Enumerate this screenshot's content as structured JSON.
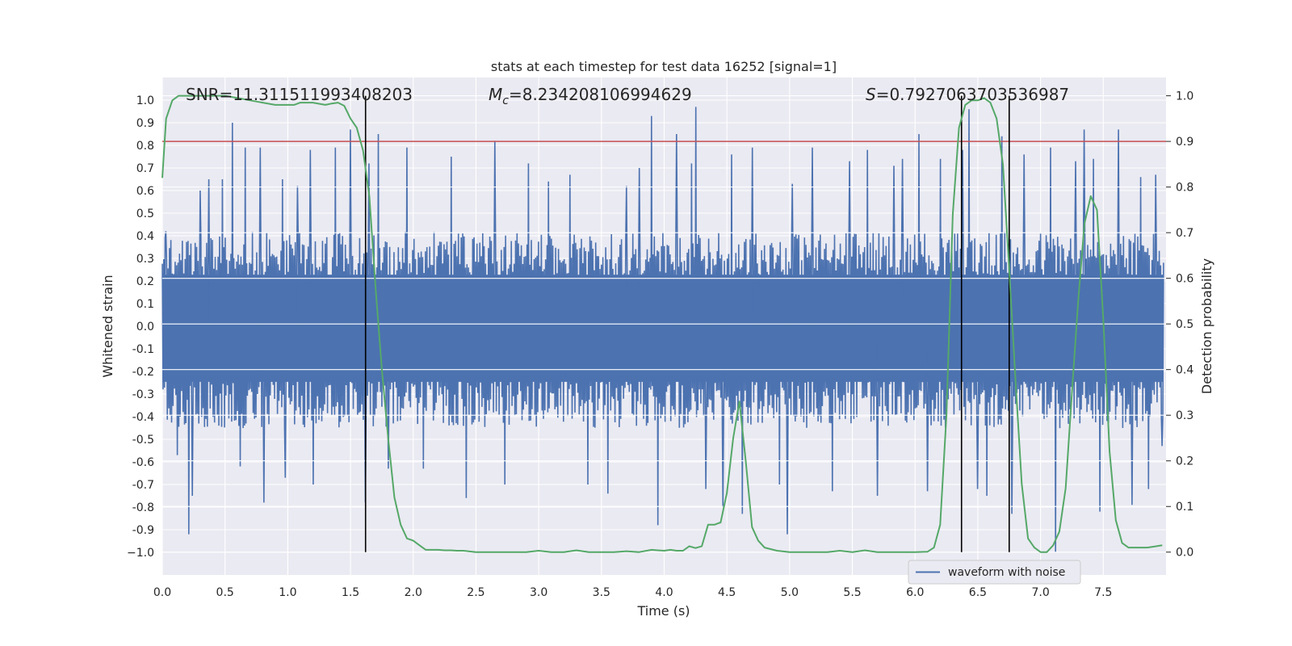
{
  "chart_data": {
    "type": "line",
    "title": "stats at each timestep for test data 16252 [signal=1]",
    "xlabel": "Time (s)",
    "ylabel": "Whitened strain",
    "ylabel_right": "Detection probability",
    "xlim": [
      0,
      8
    ],
    "ylim": [
      -1.1,
      1.1
    ],
    "ylim_right": [
      -0.05,
      1.04
    ],
    "x_ticks": [
      0.0,
      0.5,
      1.0,
      1.5,
      2.0,
      2.5,
      3.0,
      3.5,
      4.0,
      4.5,
      5.0,
      5.5,
      6.0,
      6.5,
      7.0,
      7.5
    ],
    "x_tick_labels": [
      "0.0",
      "0.5",
      "1.0",
      "1.5",
      "2.0",
      "2.5",
      "3.0",
      "3.5",
      "4.0",
      "4.5",
      "5.0",
      "5.5",
      "6.0",
      "6.5",
      "7.0",
      "7.5"
    ],
    "y_ticks": [
      1.0,
      0.9,
      0.8,
      0.7,
      0.6,
      0.5,
      0.4,
      0.3,
      0.2,
      0.1,
      0.0,
      -0.1,
      -0.2,
      -0.3,
      -0.4,
      -0.5,
      -0.6,
      -0.7,
      -0.8,
      -0.9,
      -1.0
    ],
    "y_tick_labels": [
      "1.0",
      "0.9",
      "0.8",
      "0.7",
      "0.6",
      "0.5",
      "0.4",
      "0.3",
      "0.2",
      "0.1",
      "0.0",
      "-0.1",
      "-0.2",
      "-0.3",
      "-0.4",
      "-0.5",
      "-0.6",
      "-0.7",
      "-0.8",
      "-0.9",
      "−1.0"
    ],
    "y_ticks_right": [
      1.0,
      0.9,
      0.8,
      0.7,
      0.6,
      0.5,
      0.4,
      0.3,
      0.2,
      0.1,
      0.0
    ],
    "y_tick_labels_right": [
      "1.0",
      "0.9",
      "0.8",
      "0.7",
      "0.6",
      "0.5",
      "0.4",
      "0.3",
      "0.2",
      "0.1",
      "0.0"
    ],
    "annotations": [
      {
        "text": "SNR=11.311511993408203"
      },
      {
        "text": "Mc=8.234208106994629",
        "math_base": "M",
        "math_sub": "c",
        "math_rest": "=8.234208106994629"
      },
      {
        "text": "S=0.7927063703536987",
        "math_base": "S",
        "math_rest": "=0.7927063703536987"
      }
    ],
    "threshold": {
      "value_right": 0.9,
      "color": "#c44e52"
    },
    "vertical_lines": [
      1.62,
      6.37,
      6.75
    ],
    "legend": {
      "label": "waveform with noise",
      "position": "lower right"
    },
    "series": [
      {
        "name": "waveform with noise",
        "axis": "left",
        "color": "#4c72b0",
        "envelope": {
          "upper": 0.38,
          "lower": -0.41
        },
        "peaks": [
          [
            0.03,
            0.42
          ],
          [
            0.12,
            -0.57
          ],
          [
            0.21,
            -0.92
          ],
          [
            0.24,
            -0.75
          ],
          [
            0.3,
            0.6
          ],
          [
            0.37,
            0.65
          ],
          [
            0.48,
            0.65
          ],
          [
            0.56,
            0.9
          ],
          [
            0.62,
            -0.62
          ],
          [
            0.66,
            0.79
          ],
          [
            0.78,
            0.79
          ],
          [
            0.81,
            -0.78
          ],
          [
            0.96,
            0.65
          ],
          [
            0.98,
            -0.67
          ],
          [
            1.08,
            0.62
          ],
          [
            1.18,
            0.78
          ],
          [
            1.2,
            -0.7
          ],
          [
            1.38,
            0.79
          ],
          [
            1.5,
            0.87
          ],
          [
            1.62,
            -0.78
          ],
          [
            1.65,
            0.72
          ],
          [
            1.72,
            0.85
          ],
          [
            1.8,
            -0.63
          ],
          [
            1.95,
            0.79
          ],
          [
            2.08,
            -0.63
          ],
          [
            2.3,
            0.75
          ],
          [
            2.42,
            -0.76
          ],
          [
            2.65,
            0.82
          ],
          [
            2.73,
            -0.7
          ],
          [
            2.92,
            0.72
          ],
          [
            3.08,
            0.64
          ],
          [
            3.25,
            0.67
          ],
          [
            3.39,
            -0.7
          ],
          [
            3.55,
            -0.74
          ],
          [
            3.7,
            0.62
          ],
          [
            3.8,
            0.7
          ],
          [
            3.9,
            0.93
          ],
          [
            3.95,
            -0.88
          ],
          [
            4.1,
            0.85
          ],
          [
            4.22,
            0.72
          ],
          [
            4.25,
            0.97
          ],
          [
            4.33,
            -0.72
          ],
          [
            4.47,
            -0.8
          ],
          [
            4.54,
            0.76
          ],
          [
            4.62,
            -0.83
          ],
          [
            4.7,
            0.79
          ],
          [
            4.92,
            -0.7
          ],
          [
            4.98,
            -0.92
          ],
          [
            5.02,
            0.63
          ],
          [
            5.18,
            0.79
          ],
          [
            5.34,
            -0.73
          ],
          [
            5.48,
            0.73
          ],
          [
            5.62,
            0.78
          ],
          [
            5.7,
            -0.75
          ],
          [
            5.83,
            0.71
          ],
          [
            5.9,
            0.74
          ],
          [
            6.03,
            0.85
          ],
          [
            6.1,
            -0.73
          ],
          [
            6.2,
            0.74
          ],
          [
            6.38,
            0.78
          ],
          [
            6.43,
            0.96
          ],
          [
            6.5,
            -0.72
          ],
          [
            6.57,
            -0.75
          ],
          [
            6.69,
            0.84
          ],
          [
            6.77,
            -0.83
          ],
          [
            6.87,
            0.76
          ],
          [
            7.08,
            0.79
          ],
          [
            7.12,
            -1.0
          ],
          [
            7.28,
            0.73
          ],
          [
            7.35,
            0.87
          ],
          [
            7.42,
            0.74
          ],
          [
            7.47,
            -0.82
          ],
          [
            7.62,
            0.87
          ],
          [
            7.73,
            -0.79
          ],
          [
            7.8,
            0.66
          ],
          [
            7.86,
            -0.72
          ],
          [
            7.92,
            0.67
          ],
          [
            7.97,
            -0.53
          ]
        ]
      },
      {
        "name": "",
        "axis": "right",
        "color": "#55a868",
        "x": [
          0.0,
          0.03,
          0.08,
          0.13,
          0.2,
          0.3,
          0.4,
          0.5,
          0.6,
          0.7,
          0.8,
          0.9,
          1.0,
          1.05,
          1.1,
          1.15,
          1.2,
          1.3,
          1.35,
          1.4,
          1.45,
          1.5,
          1.55,
          1.6,
          1.65,
          1.7,
          1.75,
          1.8,
          1.85,
          1.9,
          1.95,
          2.0,
          2.05,
          2.1,
          2.15,
          2.2,
          2.25,
          2.3,
          2.35,
          2.4,
          2.5,
          2.6,
          2.7,
          2.8,
          2.9,
          3.0,
          3.1,
          3.2,
          3.3,
          3.4,
          3.5,
          3.6,
          3.7,
          3.8,
          3.9,
          3.95,
          4.0,
          4.05,
          4.1,
          4.15,
          4.2,
          4.25,
          4.3,
          4.35,
          4.4,
          4.45,
          4.5,
          4.55,
          4.6,
          4.65,
          4.7,
          4.75,
          4.8,
          4.9,
          5.0,
          5.1,
          5.2,
          5.3,
          5.4,
          5.5,
          5.6,
          5.7,
          5.8,
          5.9,
          6.0,
          6.1,
          6.15,
          6.2,
          6.25,
          6.3,
          6.35,
          6.4,
          6.45,
          6.5,
          6.55,
          6.6,
          6.65,
          6.7,
          6.75,
          6.8,
          6.85,
          6.9,
          6.95,
          7.0,
          7.05,
          7.1,
          7.15,
          7.2,
          7.25,
          7.3,
          7.35,
          7.4,
          7.45,
          7.5,
          7.55,
          7.6,
          7.65,
          7.7,
          7.75,
          7.8,
          7.85,
          7.9,
          7.97
        ],
        "values": [
          0.82,
          0.95,
          0.99,
          1.0,
          1.0,
          1.0,
          1.0,
          1.0,
          0.995,
          0.99,
          0.985,
          0.98,
          0.98,
          0.98,
          0.985,
          0.985,
          0.985,
          0.98,
          0.983,
          0.985,
          0.978,
          0.95,
          0.93,
          0.88,
          0.78,
          0.58,
          0.4,
          0.25,
          0.12,
          0.06,
          0.03,
          0.025,
          0.015,
          0.005,
          0.005,
          0.005,
          0.004,
          0.004,
          0.003,
          0.003,
          0.0,
          0.0,
          0.0,
          0.0,
          0.0,
          0.003,
          0.0,
          0.0,
          0.004,
          0.0,
          0.0,
          0.0,
          0.002,
          0.0,
          0.005,
          0.004,
          0.003,
          0.005,
          0.003,
          0.003,
          0.013,
          0.009,
          0.013,
          0.06,
          0.06,
          0.065,
          0.13,
          0.25,
          0.33,
          0.2,
          0.055,
          0.025,
          0.01,
          0.003,
          0.0,
          0.0,
          0.0,
          0.0,
          0.003,
          0.0,
          0.004,
          0.0,
          0.0,
          0.0,
          0.0,
          0.001,
          0.01,
          0.06,
          0.3,
          0.74,
          0.93,
          0.98,
          0.99,
          0.99,
          0.995,
          0.985,
          0.95,
          0.85,
          0.62,
          0.38,
          0.15,
          0.03,
          0.01,
          0.0,
          0.0,
          0.015,
          0.045,
          0.14,
          0.35,
          0.55,
          0.72,
          0.78,
          0.75,
          0.51,
          0.22,
          0.07,
          0.02,
          0.01,
          0.01,
          0.01,
          0.01,
          0.012,
          0.015
        ]
      }
    ],
    "grid": true,
    "background": "#eaeaf2"
  }
}
